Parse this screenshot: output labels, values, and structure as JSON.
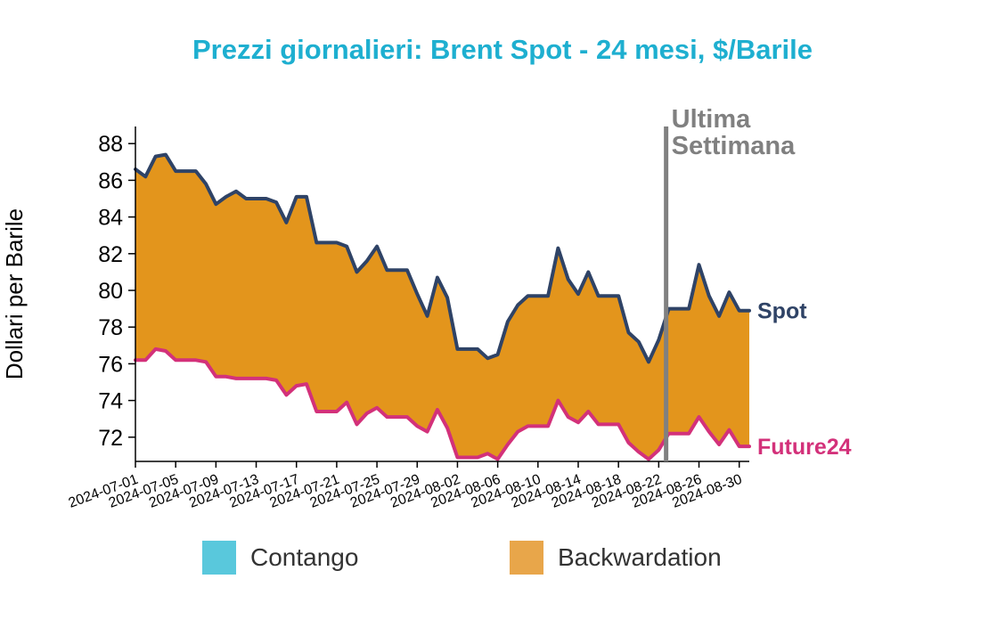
{
  "chart_data": {
    "type": "area",
    "title": "Prezzi giornalieri: Brent Spot - 24 mesi, $/Barile",
    "ylabel": "Dollari per Barile",
    "xlabel": "",
    "ylim": [
      70.8,
      89
    ],
    "yticks": [
      72,
      74,
      76,
      78,
      80,
      82,
      84,
      86,
      88
    ],
    "xticks": [
      "2024-07-01",
      "2024-07-05",
      "2024-07-09",
      "2024-07-13",
      "2024-07-17",
      "2024-07-21",
      "2024-07-25",
      "2024-07-29",
      "2024-08-02",
      "2024-08-06",
      "2024-08-10",
      "2024-08-14",
      "2024-08-18",
      "2024-08-22",
      "2024-08-26",
      "2024-08-30"
    ],
    "x": [
      "2024-07-01",
      "2024-07-02",
      "2024-07-03",
      "2024-07-04",
      "2024-07-05",
      "2024-07-06",
      "2024-07-07",
      "2024-07-08",
      "2024-07-09",
      "2024-07-10",
      "2024-07-11",
      "2024-07-12",
      "2024-07-13",
      "2024-07-14",
      "2024-07-15",
      "2024-07-16",
      "2024-07-17",
      "2024-07-18",
      "2024-07-19",
      "2024-07-20",
      "2024-07-21",
      "2024-07-22",
      "2024-07-23",
      "2024-07-24",
      "2024-07-25",
      "2024-07-26",
      "2024-07-27",
      "2024-07-28",
      "2024-07-29",
      "2024-07-30",
      "2024-07-31",
      "2024-08-01",
      "2024-08-02",
      "2024-08-03",
      "2024-08-04",
      "2024-08-05",
      "2024-08-06",
      "2024-08-07",
      "2024-08-08",
      "2024-08-09",
      "2024-08-10",
      "2024-08-11",
      "2024-08-12",
      "2024-08-13",
      "2024-08-14",
      "2024-08-15",
      "2024-08-16",
      "2024-08-17",
      "2024-08-18",
      "2024-08-19",
      "2024-08-20",
      "2024-08-21",
      "2024-08-22",
      "2024-08-23",
      "2024-08-24",
      "2024-08-25",
      "2024-08-26",
      "2024-08-27",
      "2024-08-28",
      "2024-08-29",
      "2024-08-30",
      "2024-08-31"
    ],
    "series": [
      {
        "name": "Spot",
        "color": "#2f4366",
        "values": [
          86.6,
          86.2,
          87.3,
          87.4,
          86.5,
          86.5,
          86.5,
          85.8,
          84.7,
          85.1,
          85.4,
          85.0,
          85.0,
          85.0,
          84.8,
          83.7,
          85.1,
          85.1,
          82.6,
          82.6,
          82.6,
          82.4,
          81.0,
          81.6,
          82.4,
          81.1,
          81.1,
          81.1,
          79.8,
          78.6,
          80.7,
          79.6,
          76.8,
          76.8,
          76.8,
          76.3,
          76.5,
          78.3,
          79.2,
          79.7,
          79.7,
          79.7,
          82.3,
          80.6,
          79.8,
          81.0,
          79.7,
          79.7,
          79.7,
          77.7,
          77.2,
          76.1,
          77.3,
          79.0,
          79.0,
          79.0,
          81.4,
          79.7,
          78.6,
          79.9,
          78.9,
          78.9
        ]
      },
      {
        "name": "Future24",
        "color": "#d3317a",
        "values": [
          76.2,
          76.2,
          76.8,
          76.7,
          76.2,
          76.2,
          76.2,
          76.1,
          75.3,
          75.3,
          75.2,
          75.2,
          75.2,
          75.2,
          75.1,
          74.3,
          74.8,
          74.9,
          73.4,
          73.4,
          73.4,
          73.9,
          72.7,
          73.3,
          73.6,
          73.1,
          73.1,
          73.1,
          72.6,
          72.3,
          73.5,
          72.5,
          70.9,
          70.9,
          70.9,
          71.1,
          70.8,
          71.6,
          72.3,
          72.6,
          72.6,
          72.6,
          74.0,
          73.1,
          72.8,
          73.4,
          72.7,
          72.7,
          72.7,
          71.7,
          71.2,
          70.8,
          71.3,
          72.2,
          72.2,
          72.2,
          73.1,
          72.3,
          71.6,
          72.4,
          71.5,
          71.5
        ]
      }
    ],
    "legend": [
      "Contango",
      "Backwardation"
    ],
    "legend_colors": {
      "Contango": "#59c8dc",
      "Backwardation": "#e8a64a"
    },
    "fill_color": "#e3951c",
    "annotation": {
      "x": "2024-08-23",
      "text_line1": "Ultima",
      "text_line2": "Settimana",
      "color": "#808080"
    },
    "legend_position": "bottom",
    "grid": false
  }
}
